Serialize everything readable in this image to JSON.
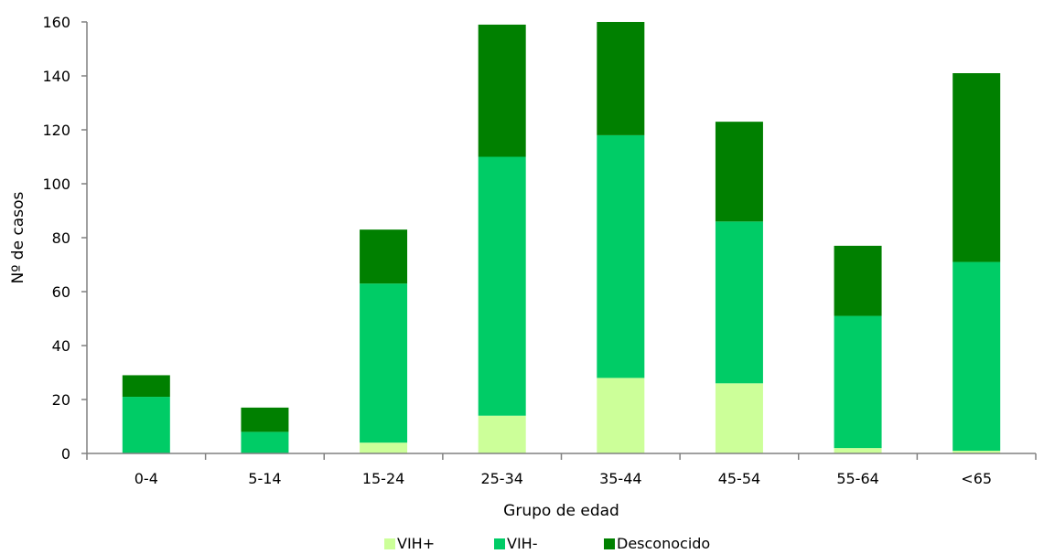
{
  "chart_data": {
    "type": "bar",
    "stacked": true,
    "title": "",
    "xlabel": "Grupo de edad",
    "ylabel": "Nº de casos",
    "ylim": [
      0,
      160
    ],
    "yticks": [
      0,
      20,
      40,
      60,
      80,
      100,
      120,
      140,
      160
    ],
    "grid": false,
    "legend": "bottom",
    "categories": [
      "0-4",
      "5-14",
      "15-24",
      "25-34",
      "35-44",
      "45-54",
      "55-64",
      "<65"
    ],
    "series": [
      {
        "name": "VIH+",
        "color": "#ccff99",
        "values": [
          0,
          0,
          4,
          14,
          28,
          26,
          2,
          1
        ]
      },
      {
        "name": "VIH-",
        "color": "#00cc66",
        "values": [
          21,
          8,
          59,
          96,
          90,
          60,
          49,
          70
        ]
      },
      {
        "name": "Desconocido",
        "color": "#008000",
        "values": [
          8,
          9,
          20,
          49,
          42,
          37,
          26,
          70
        ]
      }
    ]
  }
}
